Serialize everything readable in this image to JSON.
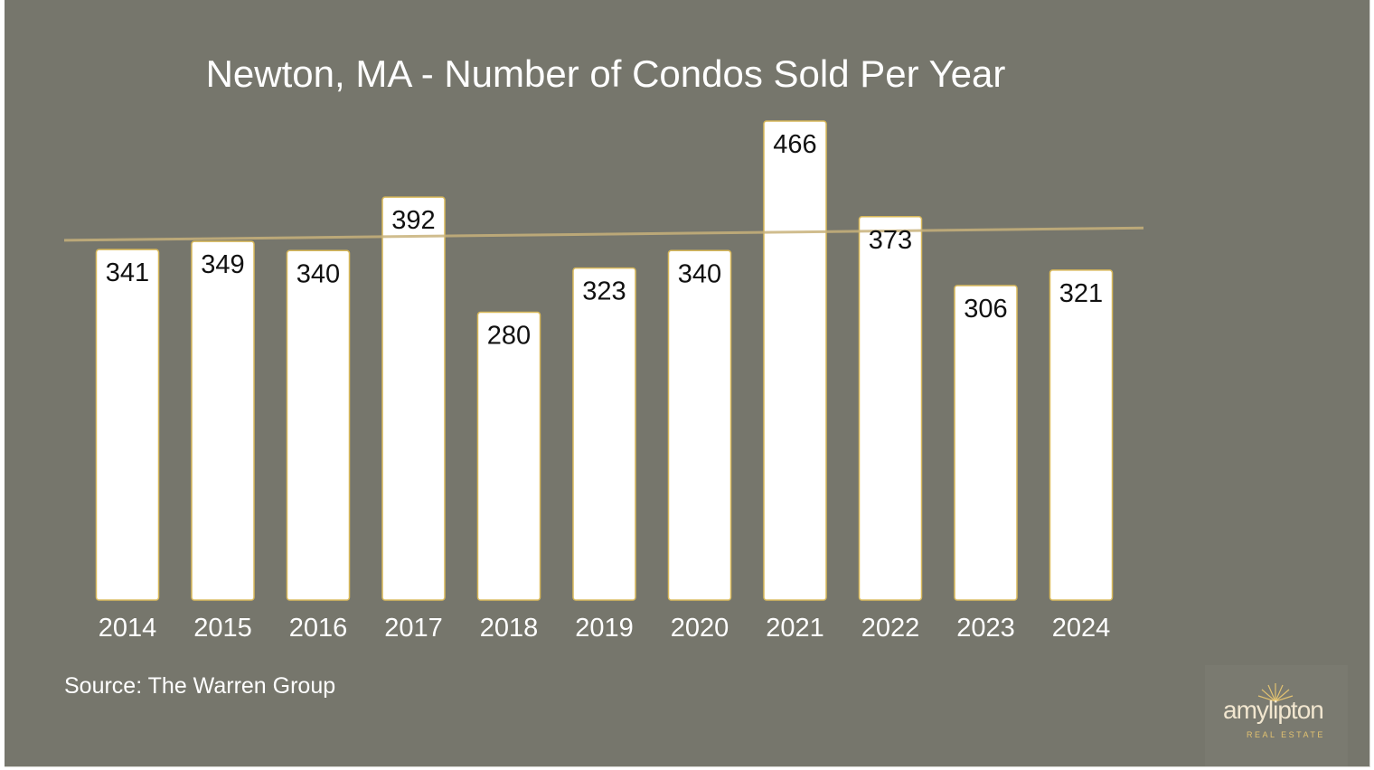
{
  "slide": {
    "title": "Newton, MA - Number of Condos Sold Per Year",
    "source": "Source: The Warren Group",
    "logo": {
      "wordmark": "amylipton",
      "subtitle": "REAL ESTATE"
    },
    "colors": {
      "background": "#76766c",
      "bar_fill": "#ffffff",
      "bar_outline": "#d9b95a",
      "trendline": "#c8b27a",
      "text": "#ffffff"
    }
  },
  "chart_data": {
    "type": "bar",
    "title": "Newton, MA - Number of Condos Sold Per Year",
    "categories": [
      "2014",
      "2015",
      "2016",
      "2017",
      "2018",
      "2019",
      "2020",
      "2021",
      "2022",
      "2023",
      "2024"
    ],
    "values": [
      341,
      349,
      340,
      392,
      280,
      323,
      340,
      466,
      373,
      306,
      321
    ],
    "data_labels": [
      "341",
      "349",
      "340",
      "392",
      "280",
      "323",
      "340",
      "466",
      "373",
      "306",
      "321"
    ],
    "xlabel": "",
    "ylabel": "",
    "ylim": [
      0,
      466
    ],
    "grid": false,
    "legend": "none",
    "trendline": {
      "type": "linear",
      "start_value": 350,
      "end_value": 362
    }
  }
}
